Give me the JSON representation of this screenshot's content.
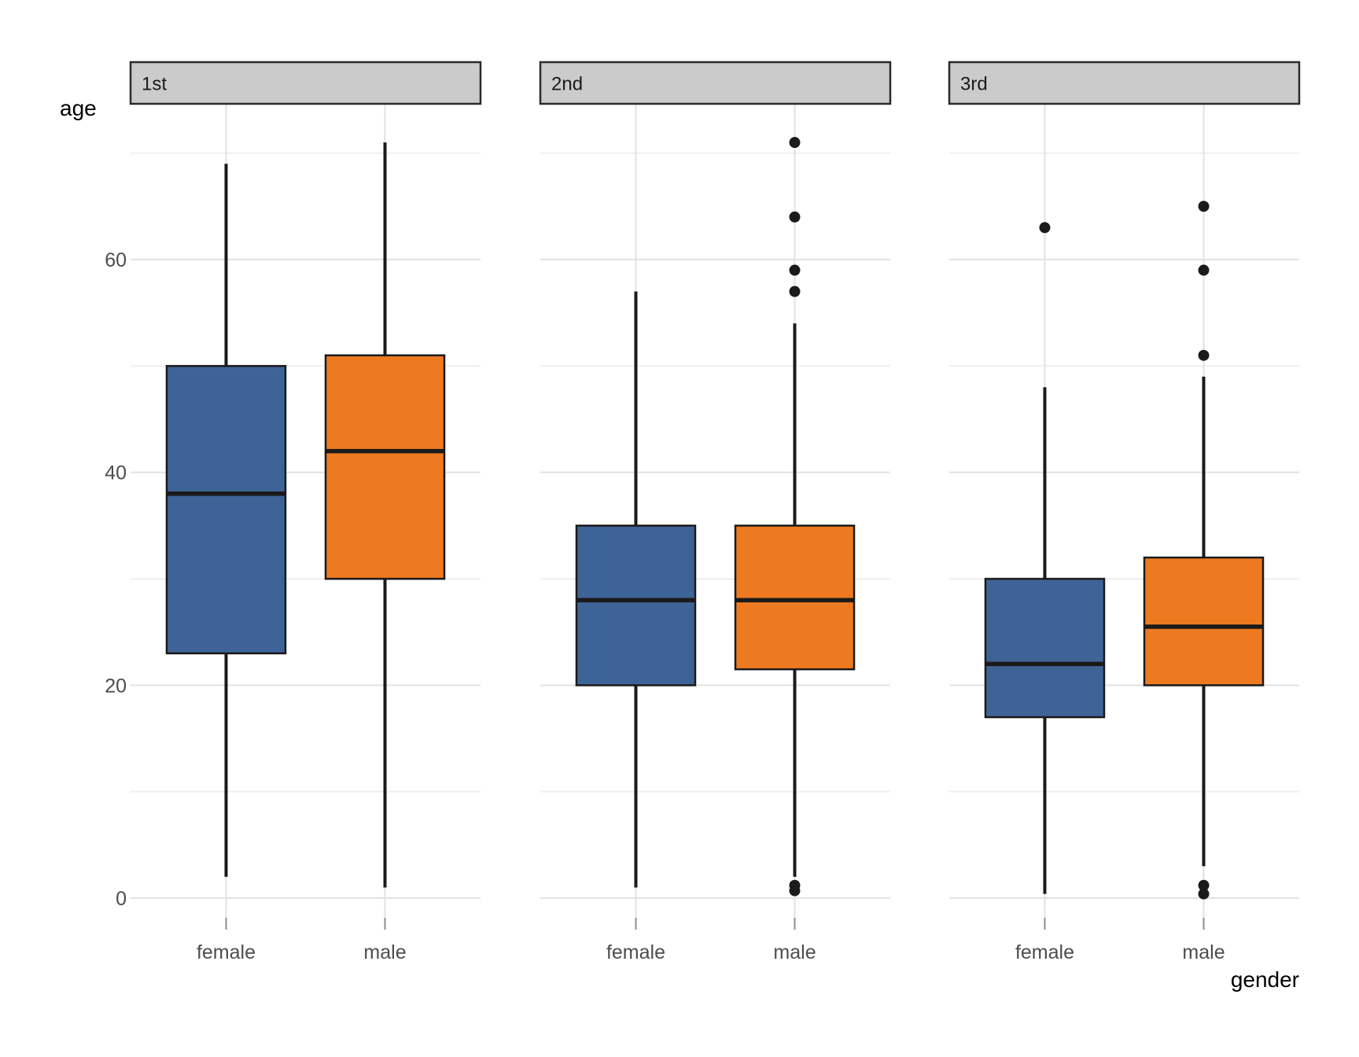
{
  "chart_data": {
    "type": "boxplot",
    "title": "",
    "ylabel": "age",
    "xlabel": "gender",
    "facet_labels": [
      "1st",
      "2nd",
      "3rd"
    ],
    "categories": [
      "female",
      "male"
    ],
    "y_ticks": [
      0,
      20,
      40,
      60
    ],
    "y_minor_gridlines": [
      10,
      30,
      50,
      70
    ],
    "ylim": [
      -2,
      74.5
    ],
    "grid": true,
    "legend": "none",
    "colors": {
      "female": "#3E6396",
      "male": "#ED7A21"
    },
    "box_stroke_color": "#1A1A1A",
    "strip_fill": "#CBCBCB",
    "strip_border": "#2B2B2B",
    "tick_label_color": "#4D4D4D",
    "facets": [
      {
        "label": "1st",
        "boxes": [
          {
            "group": "female",
            "whisker_low": 2,
            "q1": 23,
            "median": 38,
            "q3": 50,
            "whisker_high": 69,
            "outliers": []
          },
          {
            "group": "male",
            "whisker_low": 1,
            "q1": 30,
            "median": 42,
            "q3": 51,
            "whisker_high": 71,
            "outliers": []
          }
        ]
      },
      {
        "label": "2nd",
        "boxes": [
          {
            "group": "female",
            "whisker_low": 1,
            "q1": 20,
            "median": 28,
            "q3": 35,
            "whisker_high": 57,
            "outliers": []
          },
          {
            "group": "male",
            "whisker_low": 2,
            "q1": 21.5,
            "median": 28,
            "q3": 35,
            "whisker_high": 54,
            "outliers": [
              71,
              64,
              59,
              57,
              1.2,
              0.7
            ]
          }
        ]
      },
      {
        "label": "3rd",
        "boxes": [
          {
            "group": "female",
            "whisker_low": 0.4,
            "q1": 17,
            "median": 22,
            "q3": 30,
            "whisker_high": 48,
            "outliers": [
              63
            ]
          },
          {
            "group": "male",
            "whisker_low": 3,
            "q1": 20,
            "median": 25.5,
            "q3": 32,
            "whisker_high": 49,
            "outliers": [
              65,
              59,
              51,
              1.2,
              0.4
            ]
          }
        ]
      }
    ]
  }
}
